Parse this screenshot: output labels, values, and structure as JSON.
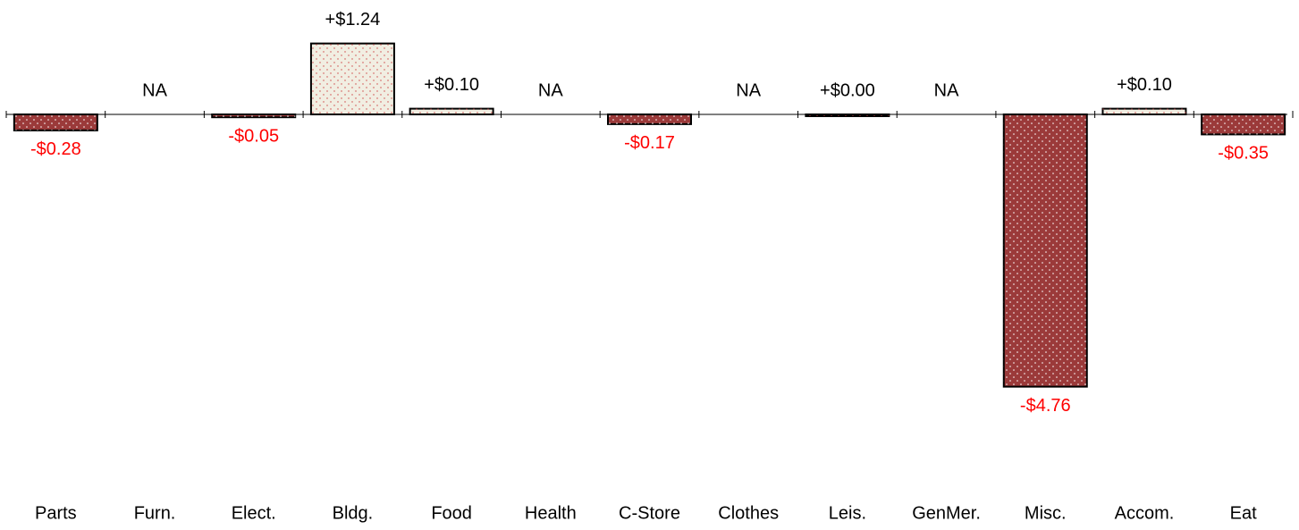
{
  "chart_data": {
    "type": "bar",
    "categories": [
      "Parts",
      "Furn.",
      "Elect.",
      "Bldg.",
      "Food",
      "Health",
      "C-Store",
      "Clothes",
      "Leis.",
      "GenMer.",
      "Misc.",
      "Accom.",
      "Eat"
    ],
    "values": [
      -0.28,
      null,
      -0.05,
      1.24,
      0.1,
      null,
      -0.17,
      null,
      0.0,
      null,
      -4.76,
      0.1,
      -0.35
    ],
    "value_labels": [
      "-$0.28",
      "NA",
      "-$0.05",
      "+$1.24",
      "+$0.10",
      "NA",
      "-$0.17",
      "NA",
      "+$0.00",
      "NA",
      "-$4.76",
      "+$0.10",
      "-$0.35"
    ],
    "positive_color": "#f1eee2",
    "negative_color": "#9b3a3a",
    "positive_label_color": "#000000",
    "negative_label_color": "#ff0000",
    "ylim": [
      -5.5,
      2
    ]
  }
}
